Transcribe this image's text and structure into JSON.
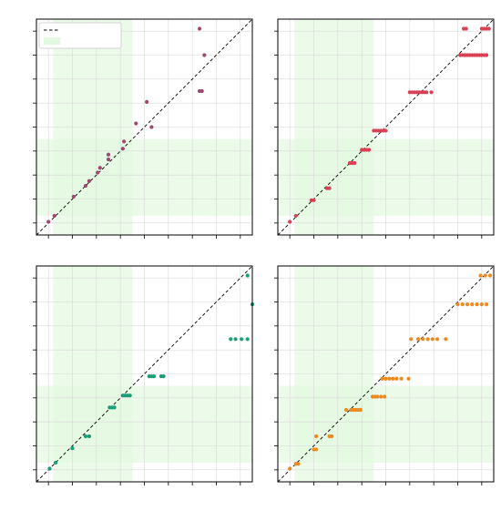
{
  "figure": {
    "background": "#ffffff",
    "highlight_color": "#e3f8e0",
    "grid": true,
    "diagonal": "dashed"
  },
  "legend": {
    "placement": "top-left",
    "line_label": "",
    "patch_label": "",
    "patch_color": "#e3f8e0"
  },
  "chart_data": [
    {
      "type": "scatter",
      "panel": "top-left",
      "color": "#a0476f",
      "xlim": [
        0,
        9
      ],
      "ylim": [
        0,
        9
      ],
      "x_ticks": [
        0.5,
        1.5,
        2.5,
        3.5,
        4.5,
        5.5,
        6.5,
        7.5,
        8.5
      ],
      "y_ticks": [
        0.5,
        1.5,
        2.5,
        3.5,
        4.5,
        5.5,
        6.5,
        7.5,
        8.5
      ],
      "highlight": {
        "x": [
          0.7,
          4.0
        ],
        "y": [
          0.8,
          4.0
        ]
      },
      "points": [
        [
          0.5,
          0.55
        ],
        [
          0.75,
          0.8
        ],
        [
          1.55,
          1.6
        ],
        [
          2.05,
          2.05
        ],
        [
          2.2,
          2.25
        ],
        [
          2.55,
          2.6
        ],
        [
          2.65,
          2.8
        ],
        [
          3.0,
          3.15
        ],
        [
          3.0,
          3.35
        ],
        [
          3.6,
          3.6
        ],
        [
          3.65,
          3.9
        ],
        [
          4.15,
          4.65
        ],
        [
          4.6,
          5.55
        ],
        [
          4.8,
          4.5
        ],
        [
          6.8,
          6.0
        ],
        [
          6.9,
          6.0
        ],
        [
          7.0,
          7.5
        ],
        [
          6.8,
          8.6
        ]
      ]
    },
    {
      "type": "scatter",
      "panel": "top-right",
      "color": "#d94055",
      "xlim": [
        0,
        9
      ],
      "ylim": [
        0,
        9
      ],
      "x_ticks": [
        0.5,
        1.5,
        2.5,
        3.5,
        4.5,
        5.5,
        6.5,
        7.5,
        8.5
      ],
      "y_ticks": [
        0.5,
        1.5,
        2.5,
        3.5,
        4.5,
        5.5,
        6.5,
        7.5,
        8.5
      ],
      "highlight": {
        "x": [
          0.7,
          4.0
        ],
        "y": [
          0.8,
          4.0
        ]
      },
      "points": [
        [
          0.5,
          0.55
        ],
        [
          0.75,
          0.8
        ],
        [
          1.4,
          1.45
        ],
        [
          1.5,
          1.45
        ],
        [
          2.05,
          1.95
        ],
        [
          2.15,
          1.95
        ],
        [
          3.0,
          3.0
        ],
        [
          3.1,
          3.0
        ],
        [
          3.2,
          3.0
        ],
        [
          3.5,
          3.55
        ],
        [
          3.6,
          3.55
        ],
        [
          3.7,
          3.55
        ],
        [
          3.8,
          3.55
        ],
        [
          4.0,
          4.35
        ],
        [
          4.1,
          4.35
        ],
        [
          4.2,
          4.35
        ],
        [
          4.3,
          4.35
        ],
        [
          4.4,
          4.35
        ],
        [
          4.5,
          4.35
        ],
        [
          5.5,
          5.95
        ],
        [
          5.6,
          5.95
        ],
        [
          5.7,
          5.95
        ],
        [
          5.8,
          5.95
        ],
        [
          5.9,
          5.95
        ],
        [
          6.0,
          5.95
        ],
        [
          6.1,
          5.95
        ],
        [
          6.2,
          5.95
        ],
        [
          6.4,
          5.95
        ],
        [
          7.6,
          7.5
        ],
        [
          7.7,
          7.5
        ],
        [
          7.8,
          7.5
        ],
        [
          7.9,
          7.5
        ],
        [
          8.0,
          7.5
        ],
        [
          8.1,
          7.5
        ],
        [
          8.2,
          7.5
        ],
        [
          8.3,
          7.5
        ],
        [
          8.4,
          7.5
        ],
        [
          8.5,
          7.5
        ],
        [
          8.6,
          7.5
        ],
        [
          8.7,
          7.5
        ],
        [
          7.75,
          8.6
        ],
        [
          7.85,
          8.6
        ],
        [
          8.5,
          8.6
        ],
        [
          8.6,
          8.6
        ],
        [
          8.7,
          8.6
        ],
        [
          8.8,
          8.6
        ]
      ]
    },
    {
      "type": "scatter",
      "panel": "bottom-left",
      "color": "#1b9e77",
      "xlim": [
        0,
        9
      ],
      "ylim": [
        0,
        9
      ],
      "x_ticks": [
        0.5,
        1.5,
        2.5,
        3.5,
        4.5,
        5.5,
        6.5,
        7.5,
        8.5
      ],
      "y_ticks": [
        0.5,
        1.5,
        2.5,
        3.5,
        4.5,
        5.5,
        6.5,
        7.5,
        8.5
      ],
      "highlight": {
        "x": [
          0.7,
          4.0
        ],
        "y": [
          0.8,
          4.0
        ]
      },
      "points": [
        [
          0.55,
          0.55
        ],
        [
          0.8,
          0.8
        ],
        [
          1.5,
          1.4
        ],
        [
          2.05,
          1.9
        ],
        [
          2.2,
          1.9
        ],
        [
          3.05,
          3.1
        ],
        [
          3.15,
          3.1
        ],
        [
          3.25,
          3.1
        ],
        [
          3.6,
          3.6
        ],
        [
          3.7,
          3.6
        ],
        [
          3.8,
          3.6
        ],
        [
          3.9,
          3.6
        ],
        [
          4.7,
          4.4
        ],
        [
          4.8,
          4.4
        ],
        [
          4.9,
          4.4
        ],
        [
          5.2,
          4.4
        ],
        [
          5.3,
          4.4
        ],
        [
          8.1,
          5.95
        ],
        [
          8.3,
          5.95
        ],
        [
          8.55,
          5.95
        ],
        [
          8.8,
          5.95
        ],
        [
          9.0,
          7.4
        ],
        [
          8.8,
          8.6
        ]
      ]
    },
    {
      "type": "scatter",
      "panel": "bottom-right",
      "color": "#ed8a1f",
      "xlim": [
        0,
        9
      ],
      "ylim": [
        0,
        9
      ],
      "x_ticks": [
        0.5,
        1.5,
        2.5,
        3.5,
        4.5,
        5.5,
        6.5,
        7.5,
        8.5
      ],
      "y_ticks": [
        0.5,
        1.5,
        2.5,
        3.5,
        4.5,
        5.5,
        6.5,
        7.5,
        8.5
      ],
      "highlight": {
        "x": [
          0.7,
          4.0
        ],
        "y": [
          0.8,
          4.0
        ]
      },
      "points": [
        [
          0.5,
          0.55
        ],
        [
          0.75,
          0.75
        ],
        [
          0.85,
          0.75
        ],
        [
          1.5,
          1.35
        ],
        [
          1.6,
          1.35
        ],
        [
          1.6,
          1.9
        ],
        [
          2.15,
          1.9
        ],
        [
          2.25,
          1.9
        ],
        [
          2.85,
          3.0
        ],
        [
          3.05,
          3.0
        ],
        [
          3.15,
          3.0
        ],
        [
          3.25,
          3.0
        ],
        [
          3.35,
          3.0
        ],
        [
          3.45,
          3.0
        ],
        [
          3.95,
          3.55
        ],
        [
          4.05,
          3.55
        ],
        [
          4.15,
          3.55
        ],
        [
          4.3,
          3.55
        ],
        [
          4.45,
          3.55
        ],
        [
          4.35,
          4.3
        ],
        [
          4.5,
          4.3
        ],
        [
          4.65,
          4.3
        ],
        [
          4.8,
          4.3
        ],
        [
          4.95,
          4.3
        ],
        [
          5.15,
          4.3
        ],
        [
          5.45,
          4.3
        ],
        [
          5.55,
          5.95
        ],
        [
          5.85,
          5.95
        ],
        [
          6.05,
          5.95
        ],
        [
          6.25,
          5.95
        ],
        [
          6.45,
          5.95
        ],
        [
          6.65,
          5.95
        ],
        [
          7.0,
          5.95
        ],
        [
          7.5,
          7.4
        ],
        [
          7.7,
          7.4
        ],
        [
          7.9,
          7.4
        ],
        [
          8.1,
          7.4
        ],
        [
          8.3,
          7.4
        ],
        [
          8.5,
          7.4
        ],
        [
          8.7,
          7.4
        ],
        [
          8.45,
          8.6
        ],
        [
          8.65,
          8.6
        ],
        [
          8.85,
          8.6
        ]
      ]
    }
  ]
}
